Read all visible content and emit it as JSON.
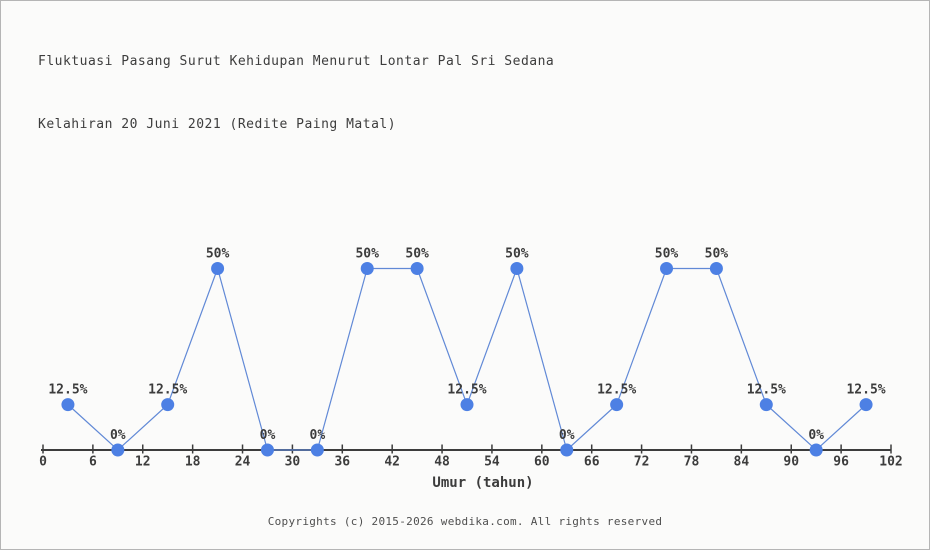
{
  "page": {
    "title_line1": "Fluktuasi Pasang Surut Kehidupan Menurut Lontar Pal Sri Sedana",
    "title_line2": "Kelahiran 20 Juni 2021 (Redite Paing Matal)",
    "footer": "Copyrights (c) 2015-2026 webdika.com. All rights reserved"
  },
  "chart_data": {
    "type": "line",
    "title": "Fluktuasi Pasang Surut Kehidupan Menurut Lontar Pal Sri Sedana Kelahiran 20 Juni 2021 (Redite Paing Matal)",
    "xlabel": "Umur (tahun)",
    "ylabel": "",
    "x": [
      3,
      9,
      15,
      21,
      27,
      33,
      39,
      45,
      51,
      57,
      63,
      69,
      75,
      81,
      87,
      93,
      99
    ],
    "values": [
      12.5,
      0,
      12.5,
      50,
      0,
      0,
      50,
      50,
      12.5,
      50,
      0,
      12.5,
      50,
      50,
      12.5,
      0,
      12.5
    ],
    "point_labels": [
      "12.5%",
      "0%",
      "12.5%",
      "50%",
      "0%",
      "0%",
      "50%",
      "50%",
      "12.5%",
      "50%",
      "0%",
      "12.5%",
      "50%",
      "50%",
      "12.5%",
      "0%",
      "12.5%"
    ],
    "x_ticks": [
      0,
      6,
      12,
      18,
      24,
      30,
      36,
      42,
      48,
      54,
      60,
      66,
      72,
      78,
      84,
      90,
      96,
      102
    ],
    "xlim": [
      0,
      102
    ],
    "ylim": [
      0,
      100
    ],
    "grid": false,
    "legend": false,
    "y_axis_shown": false,
    "colors": {
      "line": "#6189d6",
      "marker": "#4d80e4",
      "axis": "#3c3c3c",
      "text": "#3c3c3c",
      "footer_text": "#4f4f4f",
      "background": "#fbfbfa",
      "border": "#b5b5b5"
    }
  }
}
